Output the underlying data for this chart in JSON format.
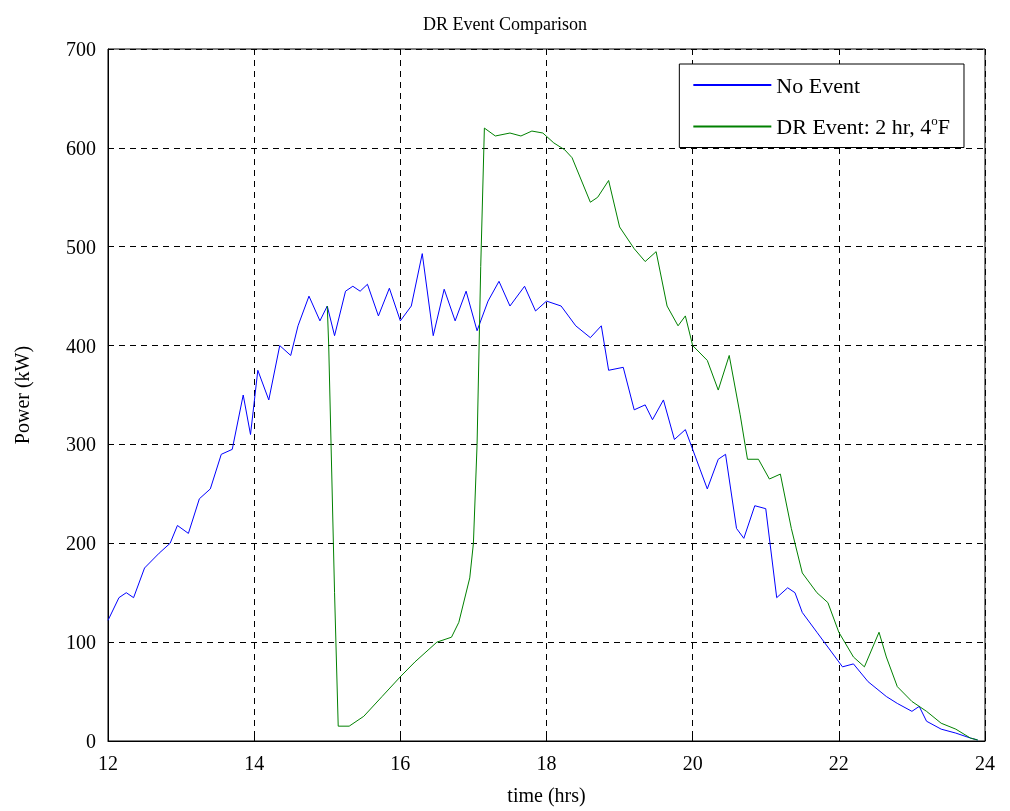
{
  "chart_data": {
    "type": "line",
    "title": "DR Event Comparison",
    "xlabel": "time (hrs)",
    "ylabel": "Power (kW)",
    "xlim": [
      12,
      24
    ],
    "xticks": [
      12,
      14,
      16,
      18,
      20,
      22,
      24
    ],
    "ylim": [
      0,
      700
    ],
    "yticks": [
      0,
      100,
      200,
      300,
      400,
      500,
      600,
      700
    ],
    "grid": true,
    "legend": "top right",
    "line_style": "solid",
    "marker": "none",
    "x": [
      12.0,
      12.15,
      12.25,
      12.35,
      12.5,
      12.7,
      12.85,
      12.95,
      13.1,
      13.25,
      13.4,
      13.55,
      13.7,
      13.85,
      13.95,
      14.05,
      14.2,
      14.35,
      14.5,
      14.6,
      14.75,
      14.9,
      15.0,
      15.1,
      15.25,
      15.35,
      15.45,
      15.55,
      15.7,
      15.85,
      16.0,
      16.15,
      16.3,
      16.45,
      16.6,
      16.75,
      16.9,
      17.05,
      17.2,
      17.35,
      17.5,
      17.7,
      17.85,
      18.0,
      18.2,
      18.4,
      18.6,
      18.75,
      18.85,
      19.05,
      19.2,
      19.35,
      19.45,
      19.6,
      19.75,
      19.9,
      20.1,
      20.2,
      20.35,
      20.45,
      20.6,
      20.7,
      20.85,
      21.0,
      21.15,
      21.3,
      21.4,
      21.5,
      21.7,
      21.9,
      22.05,
      22.2,
      22.4,
      22.65,
      22.8,
      23.0,
      23.1,
      23.2,
      23.4,
      23.6,
      23.8,
      23.9
    ],
    "series": [
      {
        "name": "No Event",
        "color": "#0000ff",
        "values": [
          122,
          145,
          150,
          145,
          175,
          190,
          200,
          218,
          210,
          245,
          255,
          290,
          295,
          350,
          310,
          375,
          345,
          400,
          390,
          420,
          450,
          425,
          440,
          410,
          455,
          460,
          455,
          462,
          430,
          458,
          425,
          440,
          493,
          410,
          457,
          425,
          455,
          415,
          445,
          465,
          440,
          460,
          435,
          445,
          440,
          420,
          408,
          420,
          375,
          378,
          335,
          340,
          325,
          345,
          305,
          315,
          275,
          255,
          285,
          290,
          215,
          205,
          238,
          235,
          145,
          155,
          150,
          130,
          110,
          90,
          75,
          78,
          60,
          45,
          38,
          30,
          35,
          20,
          12,
          8,
          3,
          1
        ]
      },
      {
        "name": "DR Event: 2 hr, 4$^{o}$F",
        "color": "#008000",
        "x": [
          15.0,
          15.02,
          15.1,
          15.15,
          15.3,
          15.5,
          15.75,
          16.0,
          16.2,
          16.5,
          16.7,
          16.8,
          16.95,
          17.0,
          17.05,
          17.1,
          17.15,
          17.3,
          17.5,
          17.65,
          17.8,
          17.95,
          18.1,
          18.25,
          18.35,
          18.6,
          18.7,
          18.85,
          19.0,
          19.2,
          19.35,
          19.5,
          19.65,
          19.8,
          19.9,
          20.0,
          20.2,
          20.35,
          20.5,
          20.65,
          20.75,
          20.9,
          21.05,
          21.2,
          21.35,
          21.5,
          21.7,
          21.85,
          22.0,
          22.2,
          22.35,
          22.55,
          22.65,
          22.8,
          23.0,
          23.2,
          23.4,
          23.6,
          23.8,
          23.9
        ],
        "values": [
          440,
          400,
          150,
          15,
          15,
          25,
          45,
          65,
          80,
          100,
          105,
          120,
          165,
          200,
          300,
          480,
          620,
          612,
          615,
          612,
          617,
          615,
          605,
          598,
          590,
          545,
          550,
          567,
          520,
          498,
          485,
          495,
          440,
          420,
          430,
          400,
          385,
          355,
          390,
          330,
          285,
          285,
          265,
          270,
          215,
          170,
          150,
          140,
          110,
          85,
          75,
          110,
          85,
          55,
          40,
          30,
          18,
          12,
          3,
          1
        ]
      }
    ]
  }
}
